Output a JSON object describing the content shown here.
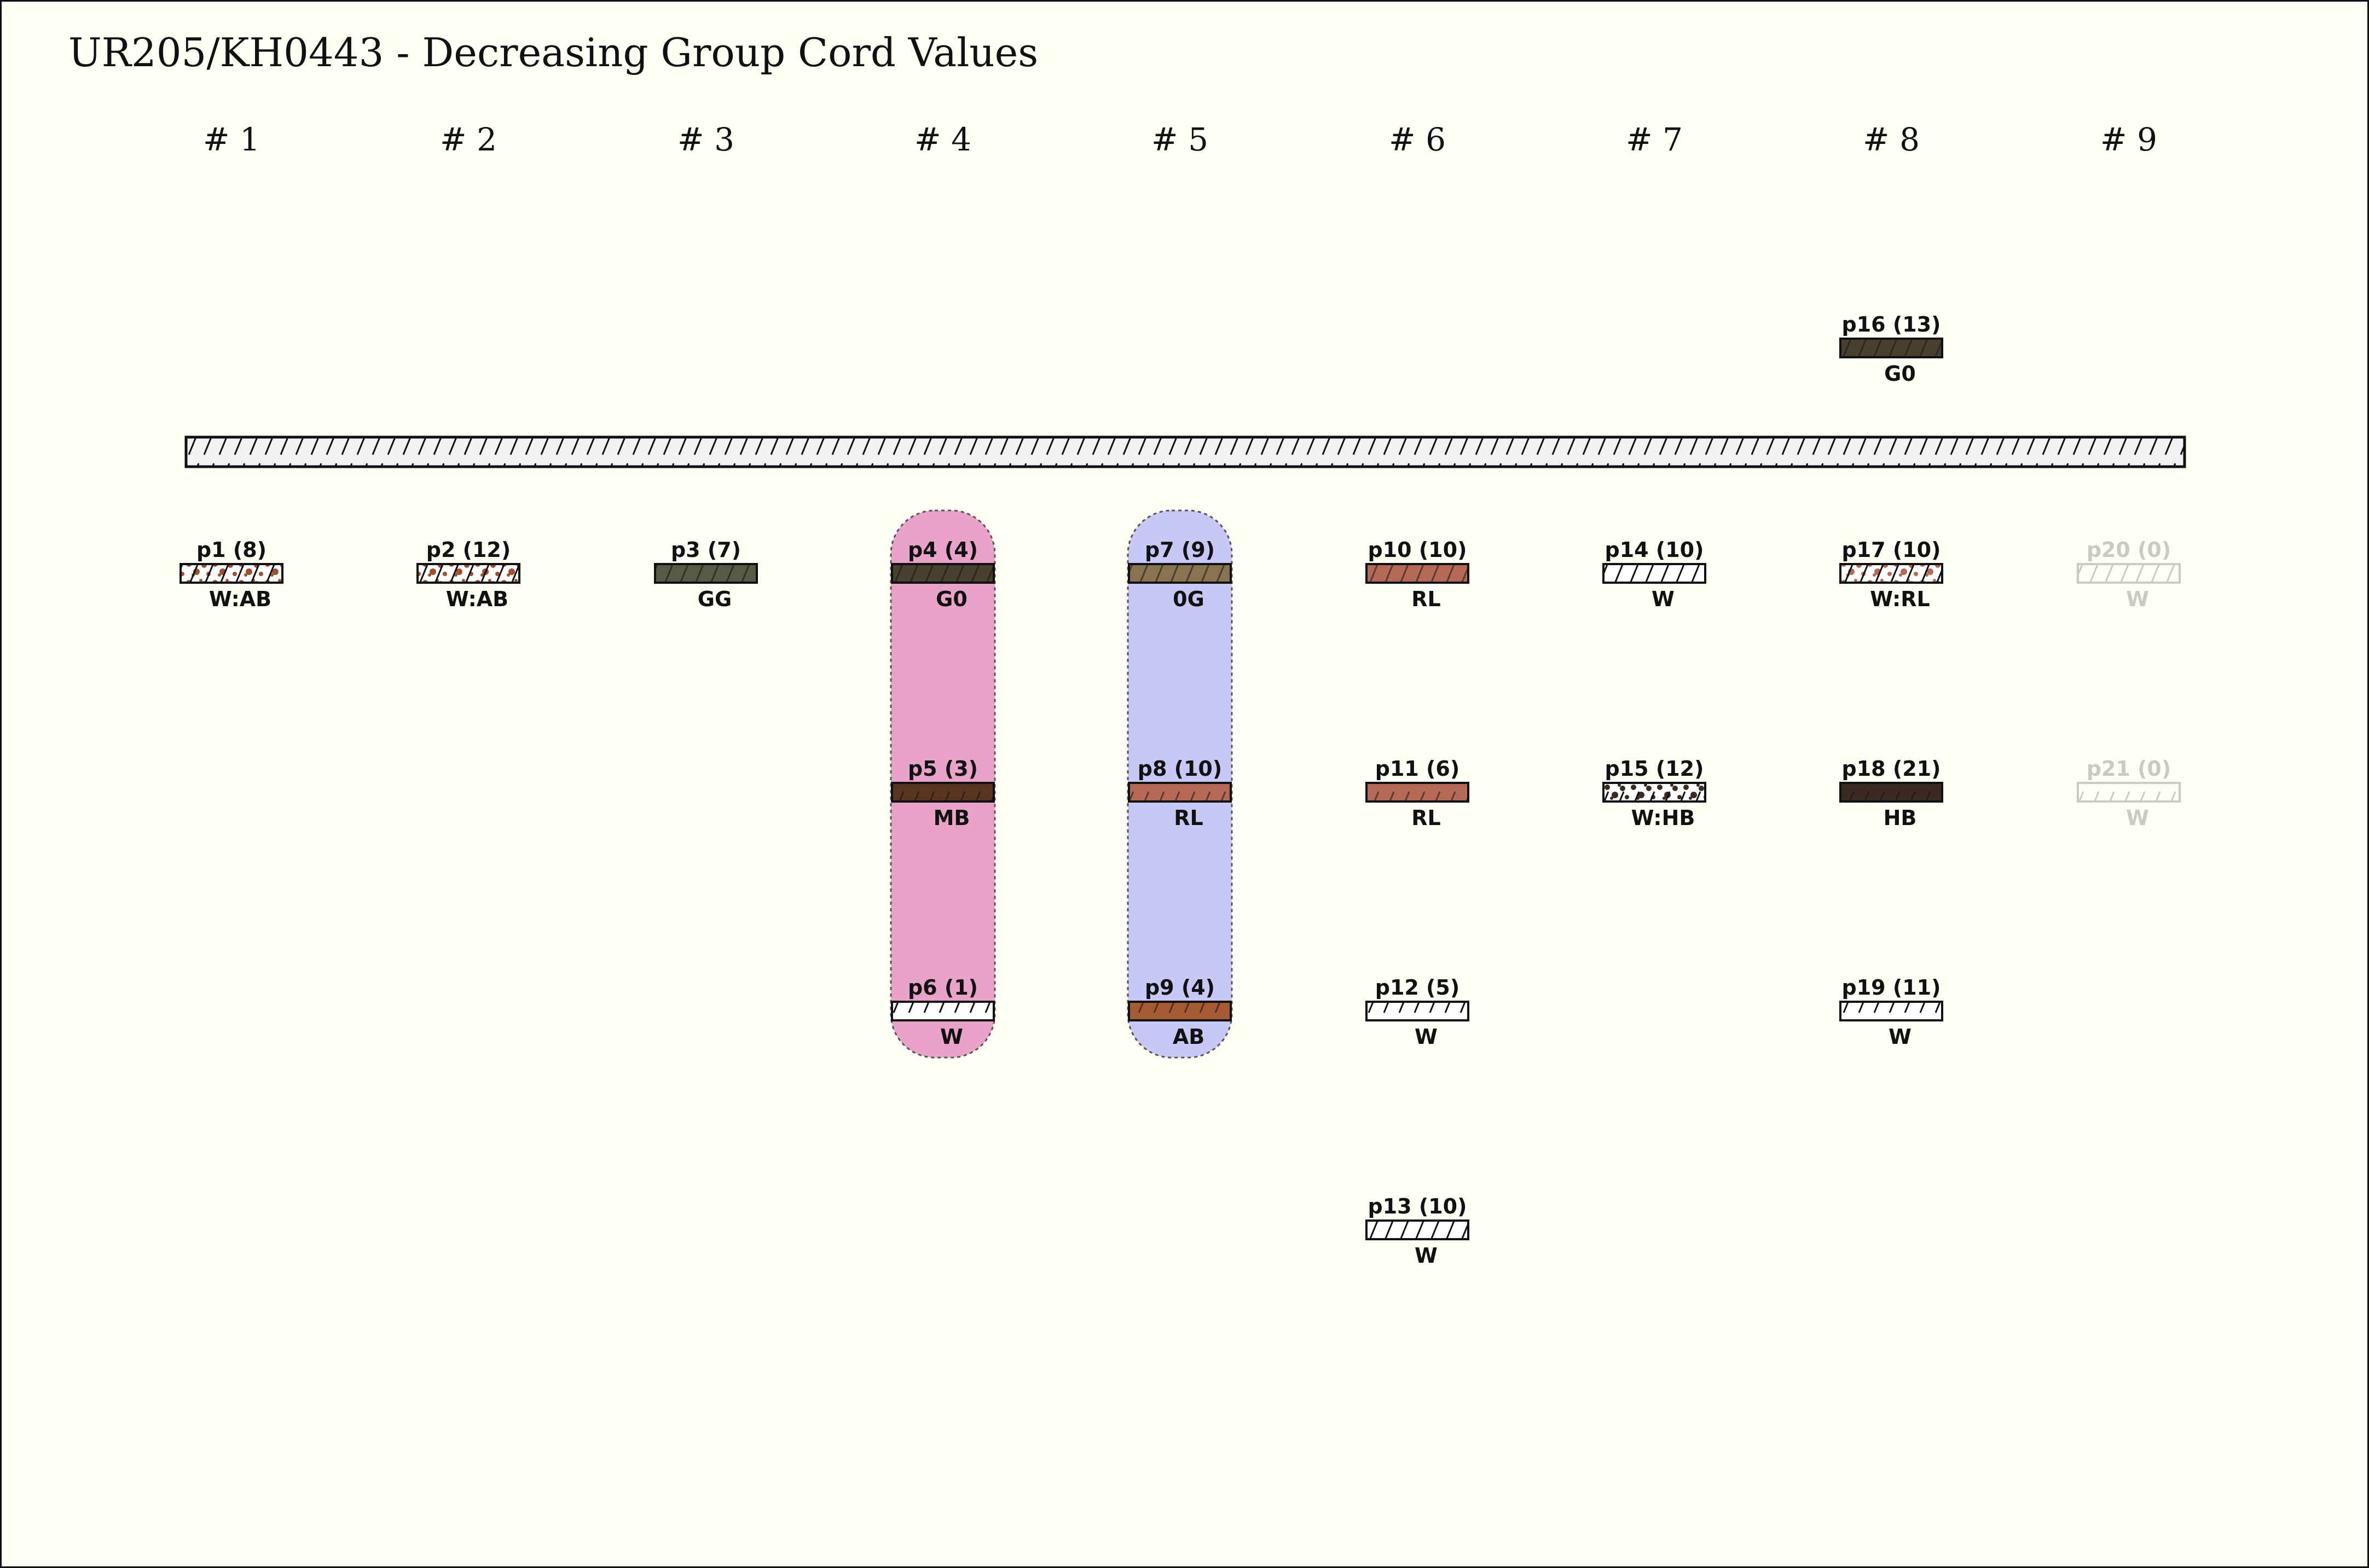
{
  "title": "UR205/KH0443 - Decreasing Group Cord Values",
  "groups": [
    "# 1",
    "# 2",
    "# 3",
    "# 4",
    "# 5",
    "# 6",
    "# 7",
    "# 8",
    "# 9"
  ],
  "highlight_colors": {
    "group4": "#e9a3c9",
    "group5": "#c8c8f6"
  },
  "highlighted_groups": [
    {
      "group": "# 4",
      "color": "#e9a3c9"
    },
    {
      "group": "# 5",
      "color": "#c8c8f6"
    }
  ],
  "top_cords": [
    {
      "label": "p16 (13)",
      "color_code": "G0",
      "group": 8,
      "fill": "#4a4030"
    }
  ],
  "cords": [
    {
      "label": "p1 (8)",
      "color_code": "W:AB",
      "group": 1,
      "row": 0,
      "fill": "#ffffff",
      "mottle": "#a05030"
    },
    {
      "label": "p2 (12)",
      "color_code": "W:AB",
      "group": 2,
      "row": 0,
      "fill": "#ffffff",
      "mottle": "#a05030"
    },
    {
      "label": "p3 (7)",
      "color_code": "GG",
      "group": 3,
      "row": 0,
      "fill": "#555b45"
    },
    {
      "label": "p4 (4)",
      "color_code": "G0",
      "group": 4,
      "row": 0,
      "fill": "#4a4030"
    },
    {
      "label": "p5 (3)",
      "color_code": "MB",
      "group": 4,
      "row": 1,
      "fill": "#5a3420"
    },
    {
      "label": "p6 (1)",
      "color_code": "W",
      "group": 4,
      "row": 2,
      "fill": "#ffffff"
    },
    {
      "label": "p7 (9)",
      "color_code": "0G",
      "group": 5,
      "row": 0,
      "fill": "#8a7350"
    },
    {
      "label": "p8 (10)",
      "color_code": "RL",
      "group": 5,
      "row": 1,
      "fill": "#b46a55"
    },
    {
      "label": "p9 (4)",
      "color_code": "AB",
      "group": 5,
      "row": 2,
      "fill": "#a65b35"
    },
    {
      "label": "p10 (10)",
      "color_code": "RL",
      "group": 6,
      "row": 0,
      "fill": "#b46a55"
    },
    {
      "label": "p11 (6)",
      "color_code": "RL",
      "group": 6,
      "row": 1,
      "fill": "#b46a55"
    },
    {
      "label": "p12 (5)",
      "color_code": "W",
      "group": 6,
      "row": 2,
      "fill": "#ffffff"
    },
    {
      "label": "p13 (10)",
      "color_code": "W",
      "group": 6,
      "row": 3,
      "fill": "#ffffff"
    },
    {
      "label": "p14 (10)",
      "color_code": "W",
      "group": 7,
      "row": 0,
      "fill": "#ffffff"
    },
    {
      "label": "p15 (12)",
      "color_code": "W:HB",
      "group": 7,
      "row": 1,
      "fill": "#ffffff",
      "mottle": "#3a2a22"
    },
    {
      "label": "p17 (10)",
      "color_code": "W:RL",
      "group": 8,
      "row": 0,
      "fill": "#ffffff",
      "mottle": "#b46a55"
    },
    {
      "label": "p18 (21)",
      "color_code": "HB",
      "group": 8,
      "row": 1,
      "fill": "#3a2a22"
    },
    {
      "label": "p19 (11)",
      "color_code": "W",
      "group": 8,
      "row": 2,
      "fill": "#ffffff"
    },
    {
      "label": "p20 (0)",
      "color_code": "W",
      "group": 9,
      "row": 0,
      "fill": "#ffffff",
      "faded": true
    },
    {
      "label": "p21 (0)",
      "color_code": "W",
      "group": 9,
      "row": 1,
      "fill": "#ffffff",
      "faded": true
    }
  ]
}
